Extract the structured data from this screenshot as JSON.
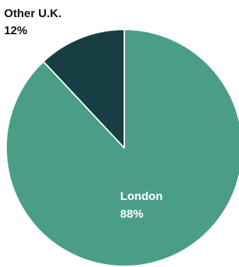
{
  "chart_data": {
    "type": "pie",
    "start": "top",
    "direction": "clockwise",
    "slices": [
      {
        "label": "London",
        "value": 88,
        "value_label": "88%",
        "color": "#4a9e88",
        "label_color": "#ffffff"
      },
      {
        "label": "Other U.K.",
        "value": 12,
        "value_label": "12%",
        "color": "#173f43",
        "label_color": "#121212"
      }
    ],
    "separator_color": "#ffffff"
  }
}
